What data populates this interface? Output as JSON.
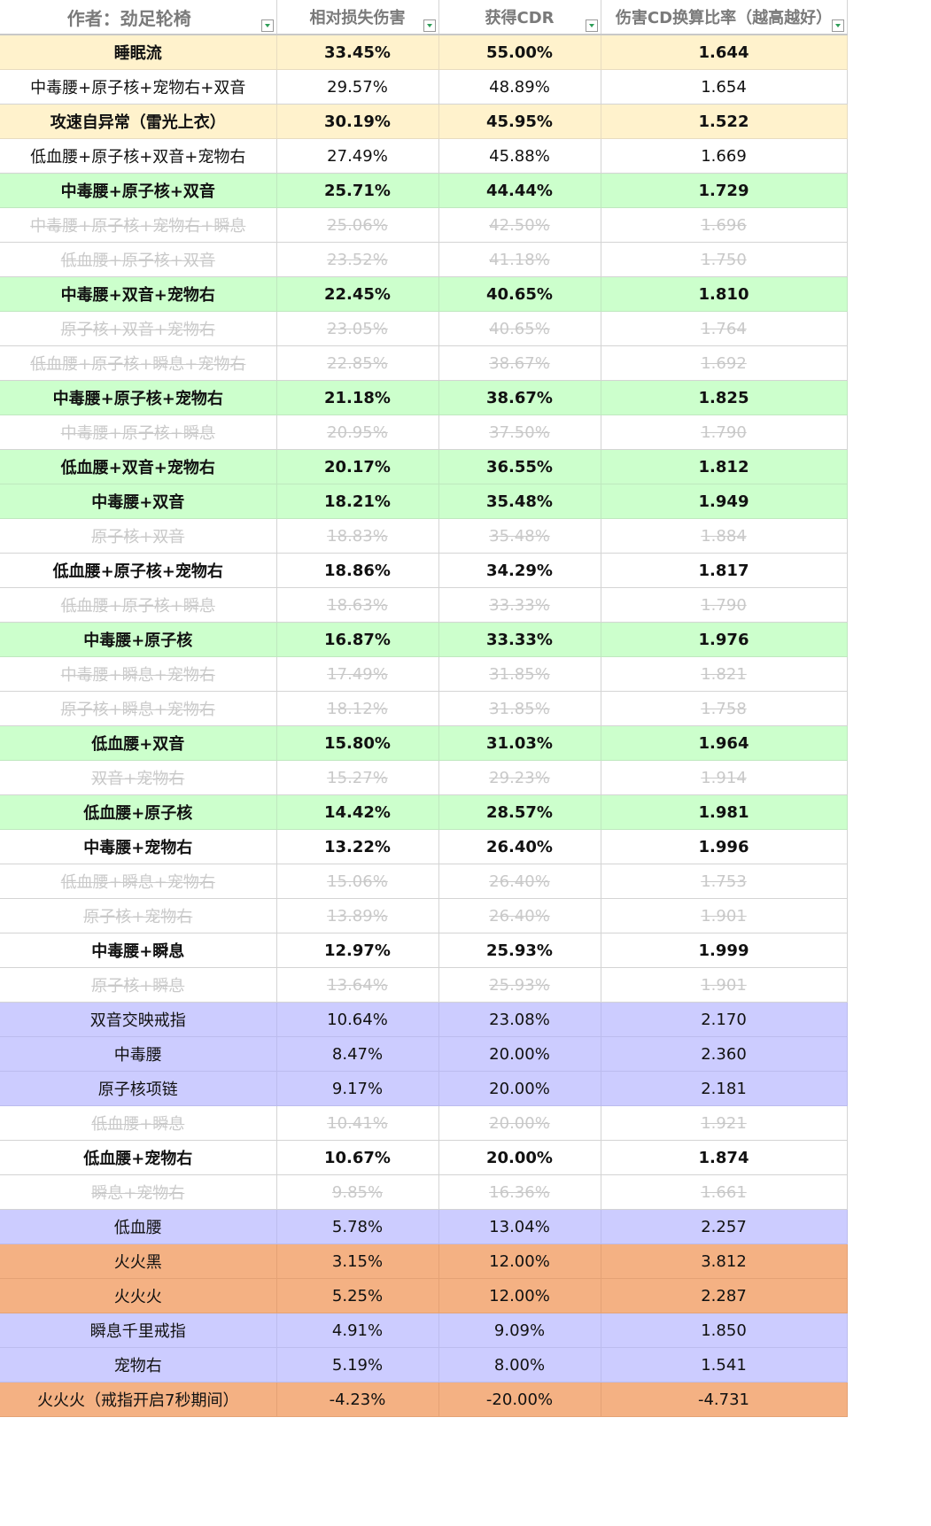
{
  "headers": {
    "author": "作者：劲足轮椅",
    "damage_loss": "相对损失伤害",
    "cdr": "获得CDR",
    "ratio": "伤害CD换算比率（越高越好）"
  },
  "rows": [
    {
      "name": "睡眠流",
      "loss": "33.45%",
      "cdr": "55.00%",
      "ratio": "1.644",
      "style": "yellow",
      "bold": true,
      "faded": false
    },
    {
      "name": "中毒腰+原子核+宠物右+双音",
      "loss": "29.57%",
      "cdr": "48.89%",
      "ratio": "1.654",
      "style": "white",
      "bold": false,
      "faded": false
    },
    {
      "name": "攻速自异常（雷光上衣）",
      "loss": "30.19%",
      "cdr": "45.95%",
      "ratio": "1.522",
      "style": "yellow",
      "bold": true,
      "faded": false
    },
    {
      "name": "低血腰+原子核+双音+宠物右",
      "loss": "27.49%",
      "cdr": "45.88%",
      "ratio": "1.669",
      "style": "white",
      "bold": false,
      "faded": false
    },
    {
      "name": "中毒腰+原子核+双音",
      "loss": "25.71%",
      "cdr": "44.44%",
      "ratio": "1.729",
      "style": "green",
      "bold": true,
      "faded": false
    },
    {
      "name": "中毒腰+原子核+宠物右+瞬息",
      "loss": "25.06%",
      "cdr": "42.50%",
      "ratio": "1.696",
      "style": "white",
      "bold": false,
      "faded": true
    },
    {
      "name": "低血腰+原子核+双音",
      "loss": "23.52%",
      "cdr": "41.18%",
      "ratio": "1.750",
      "style": "white",
      "bold": false,
      "faded": true
    },
    {
      "name": "中毒腰+双音+宠物右",
      "loss": "22.45%",
      "cdr": "40.65%",
      "ratio": "1.810",
      "style": "green",
      "bold": true,
      "faded": false
    },
    {
      "name": "原子核+双音+宠物右",
      "loss": "23.05%",
      "cdr": "40.65%",
      "ratio": "1.764",
      "style": "white",
      "bold": false,
      "faded": true
    },
    {
      "name": "低血腰+原子核+瞬息+宠物右",
      "loss": "22.85%",
      "cdr": "38.67%",
      "ratio": "1.692",
      "style": "white",
      "bold": false,
      "faded": true
    },
    {
      "name": "中毒腰+原子核+宠物右",
      "loss": "21.18%",
      "cdr": "38.67%",
      "ratio": "1.825",
      "style": "green",
      "bold": true,
      "faded": false
    },
    {
      "name": "中毒腰+原子核+瞬息",
      "loss": "20.95%",
      "cdr": "37.50%",
      "ratio": "1.790",
      "style": "white",
      "bold": false,
      "faded": true
    },
    {
      "name": "低血腰+双音+宠物右",
      "loss": "20.17%",
      "cdr": "36.55%",
      "ratio": "1.812",
      "style": "green",
      "bold": true,
      "faded": false
    },
    {
      "name": "中毒腰+双音",
      "loss": "18.21%",
      "cdr": "35.48%",
      "ratio": "1.949",
      "style": "green",
      "bold": true,
      "faded": false
    },
    {
      "name": "原子核+双音",
      "loss": "18.83%",
      "cdr": "35.48%",
      "ratio": "1.884",
      "style": "white",
      "bold": false,
      "faded": true
    },
    {
      "name": "低血腰+原子核+宠物右",
      "loss": "18.86%",
      "cdr": "34.29%",
      "ratio": "1.817",
      "style": "white",
      "bold": true,
      "faded": false
    },
    {
      "name": "低血腰+原子核+瞬息",
      "loss": "18.63%",
      "cdr": "33.33%",
      "ratio": "1.790",
      "style": "white",
      "bold": false,
      "faded": true
    },
    {
      "name": "中毒腰+原子核",
      "loss": "16.87%",
      "cdr": "33.33%",
      "ratio": "1.976",
      "style": "green",
      "bold": true,
      "faded": false
    },
    {
      "name": "中毒腰+瞬息+宠物右",
      "loss": "17.49%",
      "cdr": "31.85%",
      "ratio": "1.821",
      "style": "white",
      "bold": false,
      "faded": true
    },
    {
      "name": "原子核+瞬息+宠物右",
      "loss": "18.12%",
      "cdr": "31.85%",
      "ratio": "1.758",
      "style": "white",
      "bold": false,
      "faded": true
    },
    {
      "name": "低血腰+双音",
      "loss": "15.80%",
      "cdr": "31.03%",
      "ratio": "1.964",
      "style": "green",
      "bold": true,
      "faded": false
    },
    {
      "name": "双音+宠物右",
      "loss": "15.27%",
      "cdr": "29.23%",
      "ratio": "1.914",
      "style": "white",
      "bold": false,
      "faded": true
    },
    {
      "name": "低血腰+原子核",
      "loss": "14.42%",
      "cdr": "28.57%",
      "ratio": "1.981",
      "style": "green",
      "bold": true,
      "faded": false
    },
    {
      "name": "中毒腰+宠物右",
      "loss": "13.22%",
      "cdr": "26.40%",
      "ratio": "1.996",
      "style": "white",
      "bold": true,
      "faded": false
    },
    {
      "name": "低血腰+瞬息+宠物右",
      "loss": "15.06%",
      "cdr": "26.40%",
      "ratio": "1.753",
      "style": "white",
      "bold": false,
      "faded": true
    },
    {
      "name": "原子核+宠物右",
      "loss": "13.89%",
      "cdr": "26.40%",
      "ratio": "1.901",
      "style": "white",
      "bold": false,
      "faded": true
    },
    {
      "name": "中毒腰+瞬息",
      "loss": "12.97%",
      "cdr": "25.93%",
      "ratio": "1.999",
      "style": "white",
      "bold": true,
      "faded": false
    },
    {
      "name": "原子核+瞬息",
      "loss": "13.64%",
      "cdr": "25.93%",
      "ratio": "1.901",
      "style": "white",
      "bold": false,
      "faded": true
    },
    {
      "name": "双音交映戒指",
      "loss": "10.64%",
      "cdr": "23.08%",
      "ratio": "2.170",
      "style": "purple",
      "bold": false,
      "faded": false
    },
    {
      "name": "中毒腰",
      "loss": "8.47%",
      "cdr": "20.00%",
      "ratio": "2.360",
      "style": "purple",
      "bold": false,
      "faded": false
    },
    {
      "name": "原子核项链",
      "loss": "9.17%",
      "cdr": "20.00%",
      "ratio": "2.181",
      "style": "purple",
      "bold": false,
      "faded": false
    },
    {
      "name": "低血腰+瞬息",
      "loss": "10.41%",
      "cdr": "20.00%",
      "ratio": "1.921",
      "style": "white",
      "bold": false,
      "faded": true
    },
    {
      "name": "低血腰+宠物右",
      "loss": "10.67%",
      "cdr": "20.00%",
      "ratio": "1.874",
      "style": "white",
      "bold": true,
      "faded": false
    },
    {
      "name": "瞬息+宠物右",
      "loss": "9.85%",
      "cdr": "16.36%",
      "ratio": "1.661",
      "style": "white",
      "bold": false,
      "faded": true
    },
    {
      "name": "低血腰",
      "loss": "5.78%",
      "cdr": "13.04%",
      "ratio": "2.257",
      "style": "purple",
      "bold": false,
      "faded": false
    },
    {
      "name": "火火黑",
      "loss": "3.15%",
      "cdr": "12.00%",
      "ratio": "3.812",
      "style": "orange",
      "bold": false,
      "faded": false
    },
    {
      "name": "火火火",
      "loss": "5.25%",
      "cdr": "12.00%",
      "ratio": "2.287",
      "style": "orange",
      "bold": false,
      "faded": false
    },
    {
      "name": "瞬息千里戒指",
      "loss": "4.91%",
      "cdr": "9.09%",
      "ratio": "1.850",
      "style": "purple",
      "bold": false,
      "faded": false
    },
    {
      "name": "宠物右",
      "loss": "5.19%",
      "cdr": "8.00%",
      "ratio": "1.541",
      "style": "purple",
      "bold": false,
      "faded": false
    },
    {
      "name": "火火火（戒指开启7秒期间）",
      "loss": "-4.23%",
      "cdr": "-20.00%",
      "ratio": "-4.731",
      "style": "orange",
      "bold": false,
      "faded": false
    }
  ],
  "colors": {
    "yellow": "#fff2cc",
    "green": "#ccffcc",
    "purple": "#ccccff",
    "orange": "#f4b183",
    "faded_text": "#c9c9c9"
  },
  "icons": {
    "filter": "filter-dropdown-icon"
  }
}
